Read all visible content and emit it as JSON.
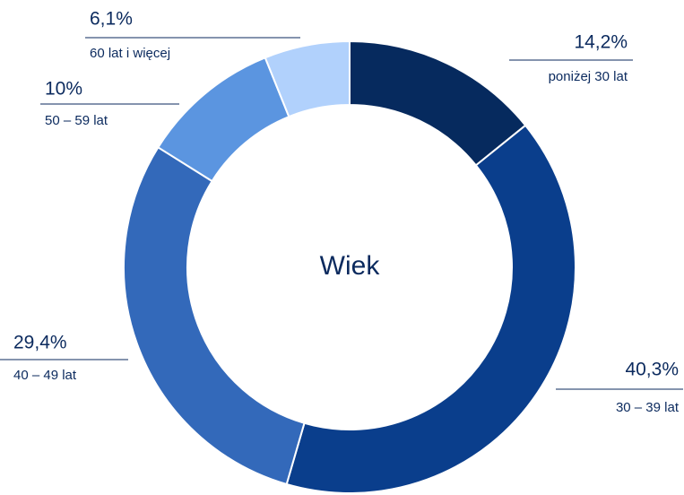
{
  "chart_data": {
    "type": "donut",
    "center_label": "Wiek",
    "categories": [
      "poniżej 30 lat",
      "30 – 39 lat",
      "40 – 49 lat",
      "50 – 59 lat",
      "60 lat i więcej"
    ],
    "values": [
      14.2,
      40.3,
      29.4,
      10,
      6.1
    ],
    "value_labels": [
      "14,2%",
      "40,3%",
      "29,4%",
      "10%",
      "6,1%"
    ],
    "colors": [
      "#062a5e",
      "#0a3e8c",
      "#3369ba",
      "#5b95e0",
      "#b1d1fc"
    ]
  }
}
